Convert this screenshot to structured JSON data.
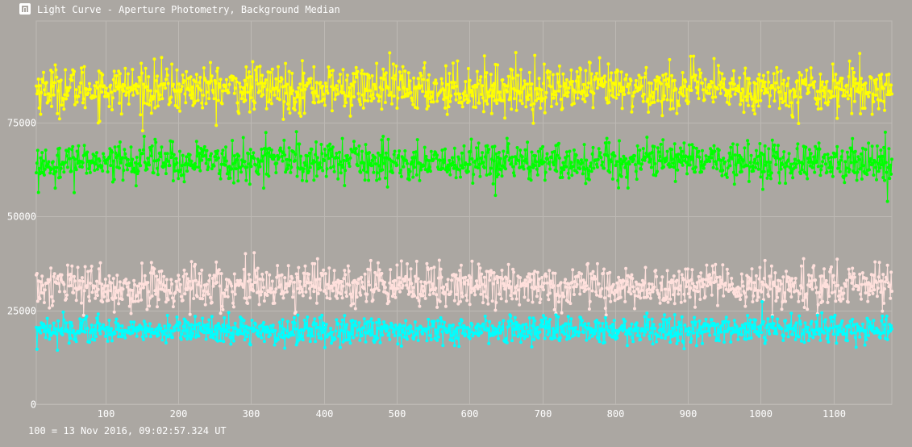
{
  "window": {
    "title": "Light Curve - Aperture Photometry, Background Median",
    "icon": "light-curve-app-icon"
  },
  "footer": {
    "time_reference": "100 = 13 Nov 2016, 09:02:57.324 UT"
  },
  "colors": {
    "background": "#aba7a2",
    "grid": "#bdb9b4",
    "axis_text": "#ffffff"
  },
  "chart_data": {
    "type": "line",
    "title": "Light Curve - Aperture Photometry, Background Median",
    "xlabel": "",
    "ylabel": "",
    "xlim": [
      5,
      1180
    ],
    "ylim": [
      0,
      102000
    ],
    "x_ticks": [
      100,
      200,
      300,
      400,
      500,
      600,
      700,
      800,
      900,
      1000,
      1100
    ],
    "y_ticks": [
      0,
      25000,
      50000,
      75000
    ],
    "grid": true,
    "legend": "none",
    "marker": "circle",
    "n_points_per_series": 1175,
    "series": [
      {
        "color": "#ffff00",
        "mean": 84000,
        "spread": 3200,
        "min": 71000,
        "max": 95500
      },
      {
        "color": "#00ff00",
        "mean": 64500,
        "spread": 2700,
        "min": 53500,
        "max": 75500
      },
      {
        "color": "#ffe0dc",
        "mean": 31500,
        "spread": 2800,
        "min": 23500,
        "max": 40500
      },
      {
        "color": "#00ffff",
        "mean": 19800,
        "spread": 1800,
        "min": 12500,
        "max": 27500
      }
    ]
  }
}
